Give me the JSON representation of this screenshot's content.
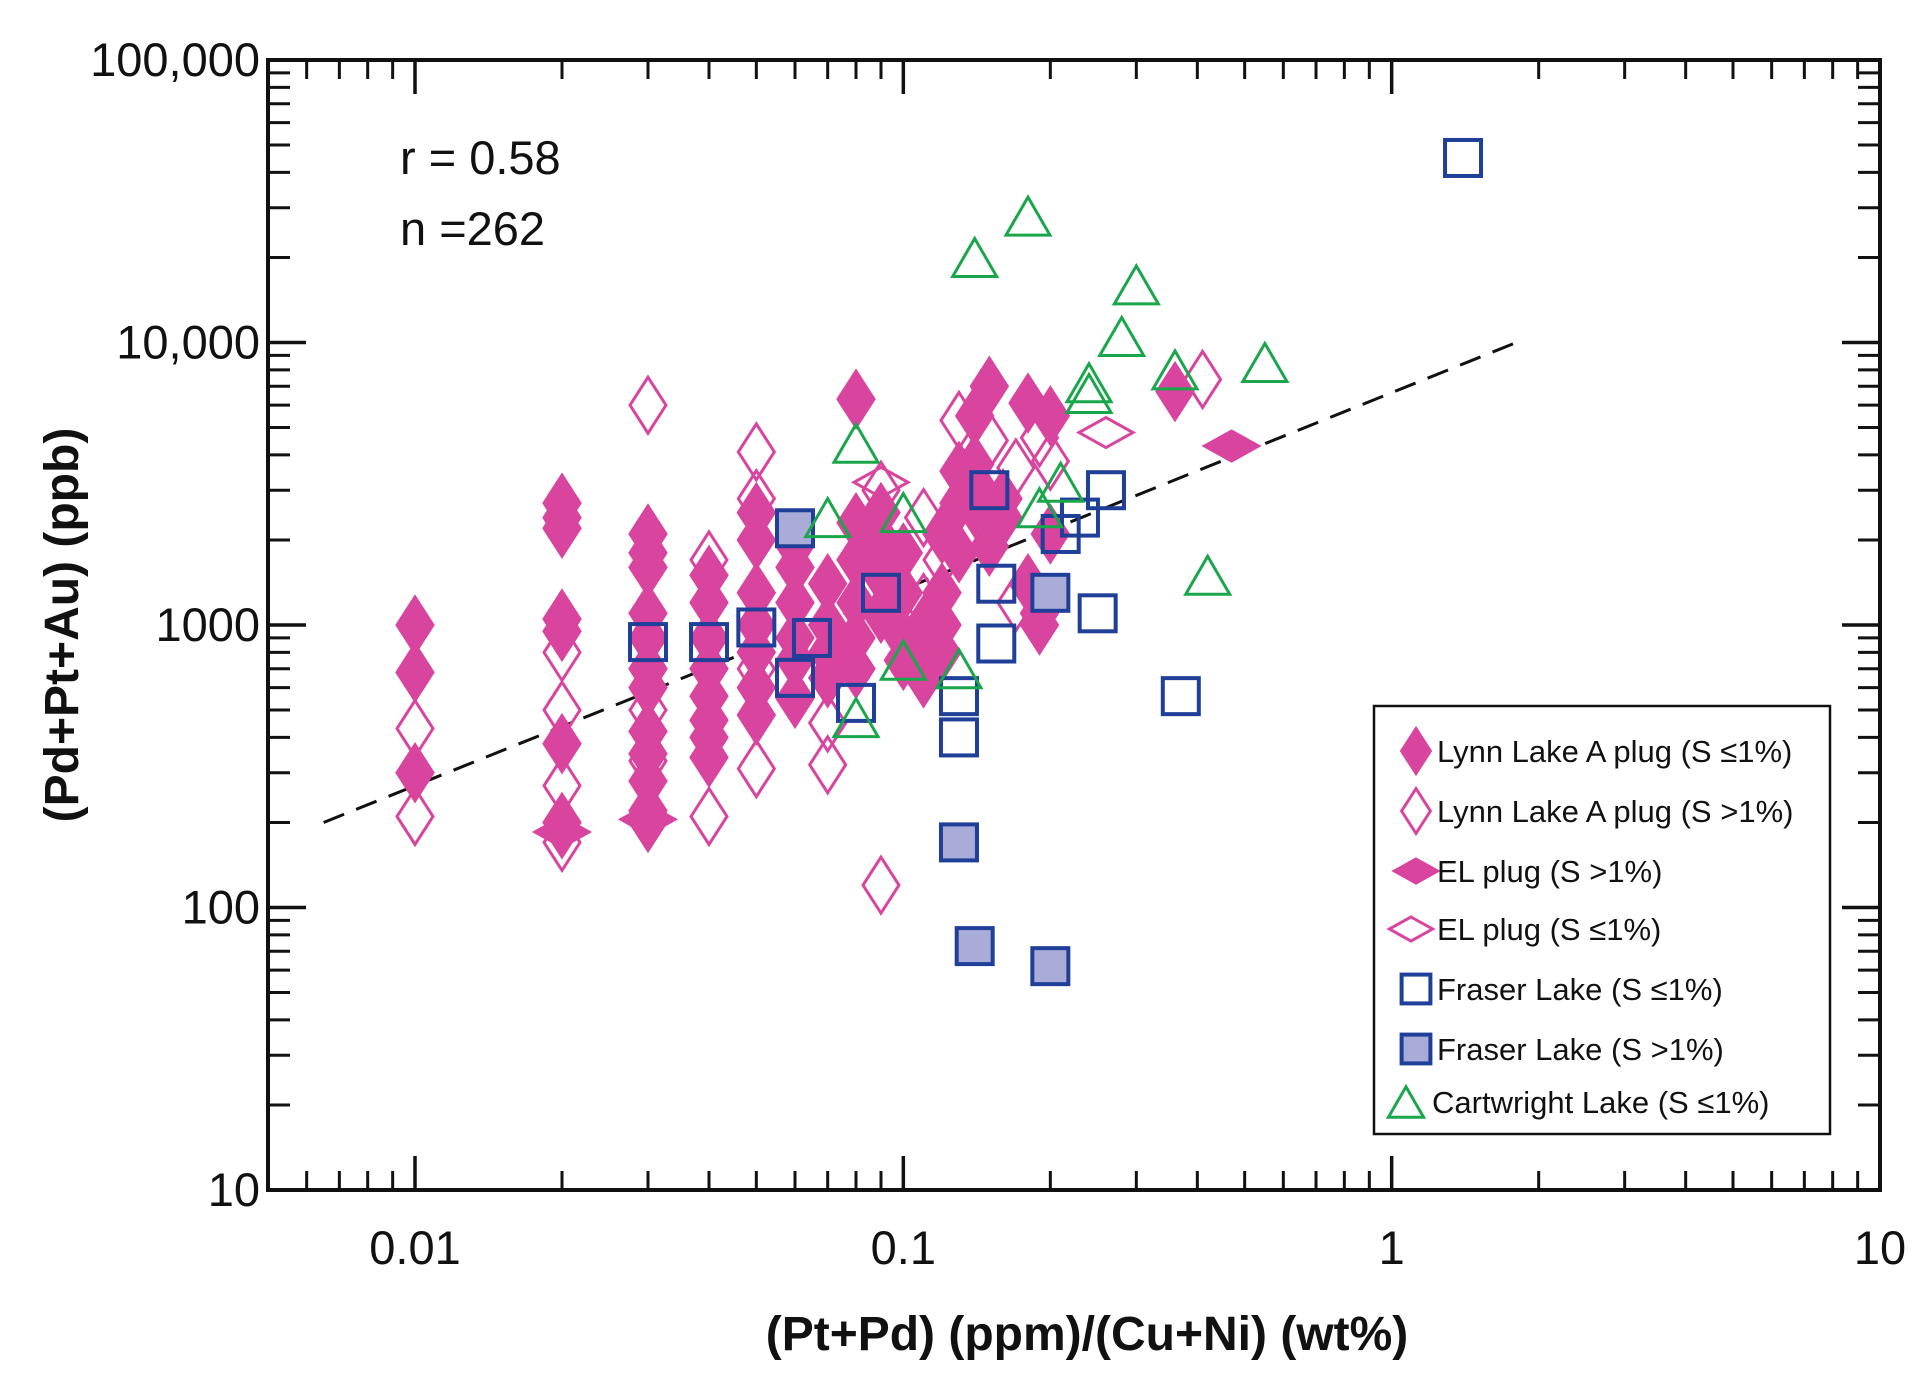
{
  "chart_data": {
    "type": "scatter",
    "title": "",
    "xlabel": "(Pt+Pd) (ppm)/(Cu+Ni) (wt%)",
    "ylabel": "(Pd+Pt+Au) (ppb)",
    "xscale": "log",
    "yscale": "log",
    "xlim": [
      0.005,
      10
    ],
    "ylim": [
      10,
      100000
    ],
    "xticks": [
      {
        "value": 0.01,
        "label": "0.01"
      },
      {
        "value": 0.1,
        "label": "0.1"
      },
      {
        "value": 1,
        "label": "1"
      },
      {
        "value": 10,
        "label": "10"
      }
    ],
    "yticks": [
      {
        "value": 10,
        "label": "10"
      },
      {
        "value": 100,
        "label": "100"
      },
      {
        "value": 1000,
        "label": "1000"
      },
      {
        "value": 10000,
        "label": "10,000"
      },
      {
        "value": 100000,
        "label": "100,000"
      }
    ],
    "grid": false,
    "legend_position": "bottom-right",
    "annotations": [
      "r = 0.58",
      "n =262"
    ],
    "trendline": {
      "style": "dashed",
      "color": "#111111",
      "points": [
        [
          0.0065,
          200
        ],
        [
          1.8,
          10000
        ]
      ]
    },
    "series": [
      {
        "name": "Lynn Lake A plug (S ≤1%)",
        "marker": "diamond",
        "filled": true,
        "color": "#d9449f",
        "points": [
          [
            0.01,
            1000
          ],
          [
            0.01,
            680
          ],
          [
            0.01,
            300
          ],
          [
            0.02,
            2700
          ],
          [
            0.02,
            2400
          ],
          [
            0.02,
            2200
          ],
          [
            0.02,
            1050
          ],
          [
            0.02,
            950
          ],
          [
            0.02,
            380
          ],
          [
            0.02,
            200
          ],
          [
            0.02,
            190
          ],
          [
            0.03,
            2100
          ],
          [
            0.03,
            1800
          ],
          [
            0.03,
            1600
          ],
          [
            0.03,
            1100
          ],
          [
            0.03,
            900
          ],
          [
            0.03,
            700
          ],
          [
            0.03,
            600
          ],
          [
            0.03,
            420
          ],
          [
            0.03,
            350
          ],
          [
            0.03,
            280
          ],
          [
            0.03,
            220
          ],
          [
            0.03,
            200
          ],
          [
            0.04,
            1500
          ],
          [
            0.04,
            1200
          ],
          [
            0.04,
            900
          ],
          [
            0.04,
            700
          ],
          [
            0.04,
            560
          ],
          [
            0.04,
            460
          ],
          [
            0.04,
            400
          ],
          [
            0.04,
            340
          ],
          [
            0.05,
            2500
          ],
          [
            0.05,
            2000
          ],
          [
            0.05,
            1300
          ],
          [
            0.05,
            1000
          ],
          [
            0.05,
            800
          ],
          [
            0.05,
            600
          ],
          [
            0.05,
            480
          ],
          [
            0.06,
            1900
          ],
          [
            0.06,
            1600
          ],
          [
            0.06,
            1200
          ],
          [
            0.06,
            900
          ],
          [
            0.06,
            750
          ],
          [
            0.06,
            550
          ],
          [
            0.07,
            1400
          ],
          [
            0.07,
            1000
          ],
          [
            0.07,
            800
          ],
          [
            0.07,
            650
          ],
          [
            0.08,
            6300
          ],
          [
            0.08,
            2300
          ],
          [
            0.08,
            1700
          ],
          [
            0.08,
            1200
          ],
          [
            0.08,
            900
          ],
          [
            0.08,
            700
          ],
          [
            0.09,
            2500
          ],
          [
            0.09,
            2000
          ],
          [
            0.09,
            1500
          ],
          [
            0.09,
            1100
          ],
          [
            0.1,
            1800
          ],
          [
            0.1,
            1300
          ],
          [
            0.1,
            900
          ],
          [
            0.1,
            750
          ],
          [
            0.11,
            1000
          ],
          [
            0.11,
            800
          ],
          [
            0.11,
            650
          ],
          [
            0.12,
            2100
          ],
          [
            0.12,
            1300
          ],
          [
            0.12,
            1000
          ],
          [
            0.12,
            800
          ],
          [
            0.13,
            3500
          ],
          [
            0.13,
            2700
          ],
          [
            0.13,
            1800
          ],
          [
            0.14,
            5500
          ],
          [
            0.14,
            3700
          ],
          [
            0.14,
            3200
          ],
          [
            0.14,
            2600
          ],
          [
            0.15,
            7000
          ],
          [
            0.15,
            1900
          ],
          [
            0.16,
            2800
          ],
          [
            0.16,
            2400
          ],
          [
            0.18,
            6100
          ],
          [
            0.18,
            1400
          ],
          [
            0.19,
            1100
          ],
          [
            0.19,
            1000
          ],
          [
            0.2,
            5500
          ],
          [
            0.2,
            2100
          ],
          [
            0.36,
            6700
          ]
        ]
      },
      {
        "name": "Lynn Lake A plug (S >1%)",
        "marker": "diamond",
        "filled": false,
        "color": "#d9449f",
        "points": [
          [
            0.01,
            430
          ],
          [
            0.01,
            210
          ],
          [
            0.02,
            800
          ],
          [
            0.02,
            500
          ],
          [
            0.02,
            270
          ],
          [
            0.02,
            170
          ],
          [
            0.03,
            6000
          ],
          [
            0.03,
            700
          ],
          [
            0.03,
            500
          ],
          [
            0.03,
            330
          ],
          [
            0.04,
            1700
          ],
          [
            0.04,
            210
          ],
          [
            0.05,
            4100
          ],
          [
            0.05,
            2800
          ],
          [
            0.05,
            700
          ],
          [
            0.05,
            310
          ],
          [
            0.07,
            450
          ],
          [
            0.07,
            320
          ],
          [
            0.09,
            3000
          ],
          [
            0.09,
            120
          ],
          [
            0.11,
            2400
          ],
          [
            0.11,
            1200
          ],
          [
            0.12,
            1700
          ],
          [
            0.13,
            5300
          ],
          [
            0.15,
            4500
          ],
          [
            0.17,
            3600
          ],
          [
            0.17,
            1200
          ],
          [
            0.19,
            4600
          ],
          [
            0.2,
            3800
          ],
          [
            0.41,
            7400
          ]
        ]
      },
      {
        "name": "EL plug (S >1%)",
        "marker": "diamond-wide",
        "filled": true,
        "color": "#d9449f",
        "points": [
          [
            0.02,
            185
          ],
          [
            0.03,
            205
          ],
          [
            0.47,
            4300
          ]
        ]
      },
      {
        "name": "EL plug (S ≤1%)",
        "marker": "diamond-wide",
        "filled": false,
        "color": "#d9449f",
        "points": [
          [
            0.09,
            3200
          ],
          [
            0.26,
            4800
          ]
        ]
      },
      {
        "name": "Fraser Lake (S ≤1%)",
        "marker": "square",
        "filled": false,
        "color": "#1f3f99",
        "points": [
          [
            1.4,
            45000
          ],
          [
            0.03,
            870
          ],
          [
            0.04,
            870
          ],
          [
            0.05,
            980
          ],
          [
            0.06,
            650
          ],
          [
            0.065,
            900
          ],
          [
            0.08,
            530
          ],
          [
            0.09,
            1300
          ],
          [
            0.13,
            560
          ],
          [
            0.13,
            400
          ],
          [
            0.15,
            3000
          ],
          [
            0.155,
            1400
          ],
          [
            0.155,
            860
          ],
          [
            0.21,
            2100
          ],
          [
            0.23,
            2400
          ],
          [
            0.26,
            3000
          ],
          [
            0.25,
            1100
          ],
          [
            0.37,
            560
          ]
        ]
      },
      {
        "name": "Fraser Lake (S >1%)",
        "marker": "square",
        "filled": true,
        "color": "#1f3f99",
        "fill": "#a9acd8",
        "points": [
          [
            0.06,
            2200
          ],
          [
            0.13,
            170
          ],
          [
            0.14,
            73
          ],
          [
            0.2,
            62
          ],
          [
            0.2,
            1300
          ]
        ]
      },
      {
        "name": "Cartwright Lake (S ≤1%)",
        "marker": "triangle",
        "filled": false,
        "color": "#1aa64a",
        "points": [
          [
            0.18,
            28000
          ],
          [
            0.14,
            20000
          ],
          [
            0.3,
            16000
          ],
          [
            0.28,
            10500
          ],
          [
            0.55,
            8500
          ],
          [
            0.36,
            8000
          ],
          [
            0.24,
            7200
          ],
          [
            0.24,
            6600
          ],
          [
            0.08,
            4400
          ],
          [
            0.07,
            2400
          ],
          [
            0.1,
            2500
          ],
          [
            0.21,
            3200
          ],
          [
            0.42,
            1500
          ],
          [
            0.08,
            470
          ],
          [
            0.1,
            750
          ],
          [
            0.13,
            700
          ],
          [
            0.19,
            2600
          ]
        ]
      }
    ]
  }
}
